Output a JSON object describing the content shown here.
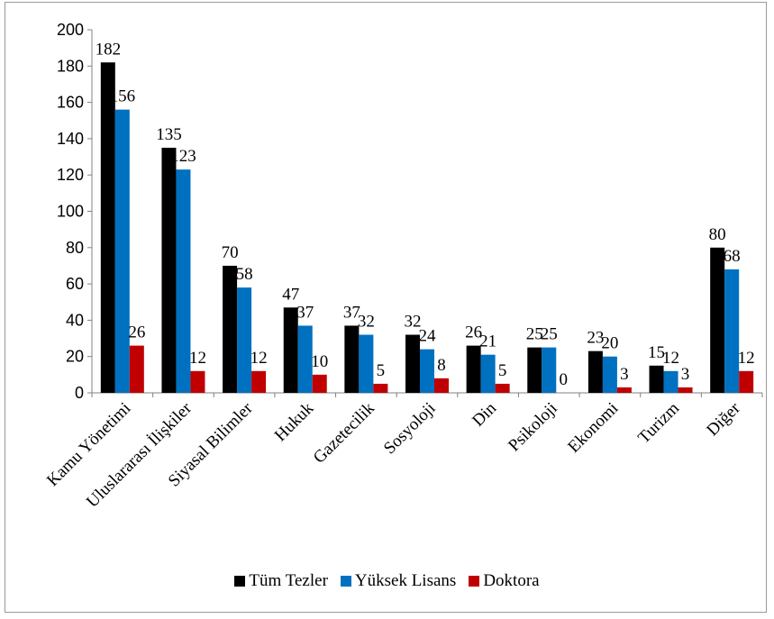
{
  "chart_data": {
    "type": "bar",
    "categories": [
      "Kamu Yönetimi",
      "Uluslararası İlişkiler",
      "Siyasal Bilimler",
      "Hukuk",
      "Gazetecilik",
      "Sosyoloji",
      "Din",
      "Psikoloji",
      "Ekonomi",
      "Turizm",
      "Diğer"
    ],
    "series": [
      {
        "name": "Tüm Tezler",
        "color": "#000000",
        "values": [
          182,
          135,
          70,
          47,
          37,
          32,
          26,
          25,
          23,
          15,
          80
        ]
      },
      {
        "name": "Yüksek Lisans",
        "color": "#0070c0",
        "values": [
          156,
          123,
          58,
          37,
          32,
          24,
          21,
          25,
          20,
          12,
          68
        ]
      },
      {
        "name": "Doktora",
        "color": "#c00000",
        "values": [
          26,
          12,
          12,
          10,
          5,
          8,
          5,
          0,
          3,
          3,
          12
        ]
      }
    ],
    "ylim": [
      0,
      200
    ],
    "yticks": [
      0,
      20,
      40,
      60,
      80,
      100,
      120,
      140,
      160,
      180,
      200
    ],
    "grid": false,
    "legend_position": "bottom"
  }
}
